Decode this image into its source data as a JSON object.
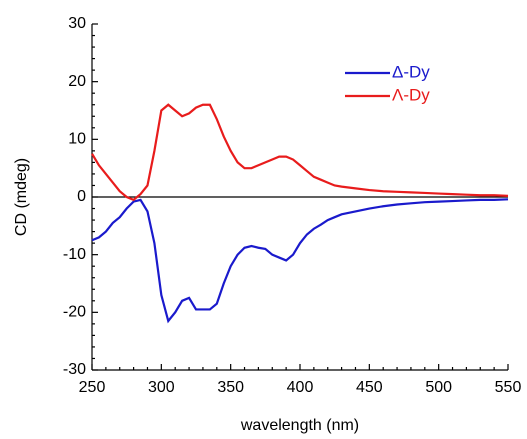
{
  "chart_data": {
    "type": "line",
    "x_label": "wavelength (nm)",
    "y_label": "CD (mdeg)",
    "x": [
      250,
      255,
      260,
      265,
      270,
      275,
      280,
      285,
      290,
      295,
      300,
      305,
      310,
      315,
      320,
      325,
      330,
      335,
      340,
      345,
      350,
      355,
      360,
      365,
      370,
      375,
      380,
      385,
      390,
      395,
      400,
      405,
      410,
      415,
      420,
      425,
      430,
      440,
      450,
      460,
      470,
      480,
      490,
      500,
      510,
      520,
      530,
      540,
      550
    ],
    "series": [
      {
        "name": "Δ-Dy",
        "color": "#1a1acc",
        "values": [
          -7.5,
          -7,
          -6,
          -4.5,
          -3.5,
          -2,
          -0.8,
          -0.5,
          -2.5,
          -8,
          -17,
          -21.5,
          -20,
          -18,
          -17.5,
          -19.5,
          -19.5,
          -19.5,
          -18.5,
          -15,
          -12,
          -10,
          -8.8,
          -8.5,
          -8.8,
          -9,
          -10,
          -10.5,
          -11,
          -10,
          -8,
          -6.5,
          -5.5,
          -4.8,
          -4,
          -3.5,
          -3,
          -2.5,
          -2,
          -1.6,
          -1.3,
          -1.1,
          -0.9,
          -0.8,
          -0.7,
          -0.6,
          -0.5,
          -0.5,
          -0.4
        ]
      },
      {
        "name": "Λ-Dy",
        "color": "#e81c1c",
        "values": [
          7.5,
          5.5,
          4,
          2.5,
          1,
          0,
          -0.5,
          0.5,
          2,
          8,
          15,
          16,
          15,
          14,
          14.5,
          15.5,
          16,
          16,
          13.5,
          10.5,
          8,
          6,
          5,
          5,
          5.5,
          6,
          6.5,
          7,
          7,
          6.5,
          5.5,
          4.5,
          3.5,
          3,
          2.5,
          2,
          1.8,
          1.5,
          1.2,
          1,
          0.9,
          0.8,
          0.7,
          0.6,
          0.5,
          0.4,
          0.3,
          0.3,
          0.2
        ]
      }
    ],
    "xlim": [
      250,
      550
    ],
    "xticks": [
      250,
      300,
      350,
      400,
      450,
      500,
      550
    ],
    "ylim": [
      -30,
      30
    ],
    "yticks": [
      -30,
      -20,
      -10,
      0,
      10,
      20,
      30
    ],
    "zero_line": true,
    "legend": "upper right"
  }
}
